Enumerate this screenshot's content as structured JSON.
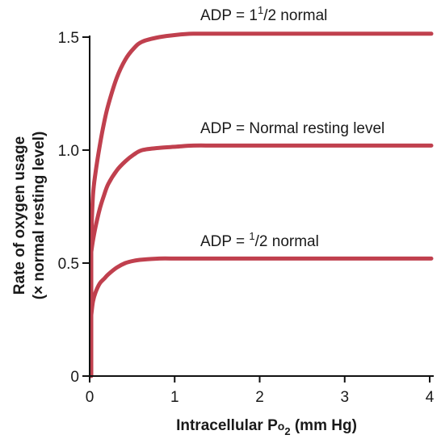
{
  "chart_data": {
    "type": "line",
    "xlabel": {
      "main": "Intracellular P",
      "sub_o": "o",
      "sub_2": "2",
      "unit": " (mm Hg)"
    },
    "ylabel": {
      "line1": "Rate of oxygen usage",
      "line2": "(× normal resting level)"
    },
    "xlim": [
      0,
      4
    ],
    "ylim": [
      0,
      1.5
    ],
    "x_ticks": [
      0,
      1,
      2,
      3,
      4
    ],
    "x_tick_labels": [
      "0",
      "1",
      "2",
      "3",
      "4"
    ],
    "y_ticks": [
      0,
      0.5,
      1.0,
      1.5
    ],
    "y_tick_labels": [
      "0",
      "0.5",
      "1.0",
      "1.5"
    ],
    "grid": false,
    "line_color": "#c0404e",
    "series": [
      {
        "label": {
          "pre": "ADP = 1",
          "sup": "1",
          "post": "/2 normal"
        },
        "x": [
          0,
          0.02,
          0.05,
          0.1,
          0.15,
          0.2,
          0.3,
          0.4,
          0.5,
          0.6,
          0.8,
          1.0,
          1.2,
          1.5,
          2,
          3,
          4
        ],
        "values": [
          0.62,
          0.8,
          0.9,
          1.02,
          1.12,
          1.2,
          1.32,
          1.4,
          1.45,
          1.48,
          1.5,
          1.51,
          1.515,
          1.515,
          1.515,
          1.515,
          1.515
        ]
      },
      {
        "label": {
          "pre": "ADP = Normal resting level",
          "sup": "",
          "post": ""
        },
        "x": [
          0,
          0.02,
          0.05,
          0.1,
          0.15,
          0.2,
          0.3,
          0.4,
          0.5,
          0.6,
          0.8,
          1.0,
          1.2,
          1.5,
          2,
          3,
          4
        ],
        "values": [
          0.55,
          0.6,
          0.66,
          0.74,
          0.8,
          0.85,
          0.91,
          0.95,
          0.98,
          1.0,
          1.01,
          1.015,
          1.02,
          1.02,
          1.02,
          1.02,
          1.02
        ]
      },
      {
        "label": {
          "pre": "ADP = ",
          "sup": "1",
          "post": "/2 normal"
        },
        "x": [
          0,
          0.02,
          0.05,
          0.1,
          0.15,
          0.2,
          0.3,
          0.4,
          0.5,
          0.6,
          0.8,
          1.0,
          1.2,
          1.5,
          2,
          3,
          4
        ],
        "values": [
          0.27,
          0.33,
          0.37,
          0.41,
          0.43,
          0.45,
          0.48,
          0.5,
          0.51,
          0.515,
          0.52,
          0.52,
          0.52,
          0.52,
          0.52,
          0.52,
          0.52
        ]
      }
    ],
    "vertical_rise_line": {
      "x": 0,
      "from": 0,
      "to": 0.62
    }
  }
}
